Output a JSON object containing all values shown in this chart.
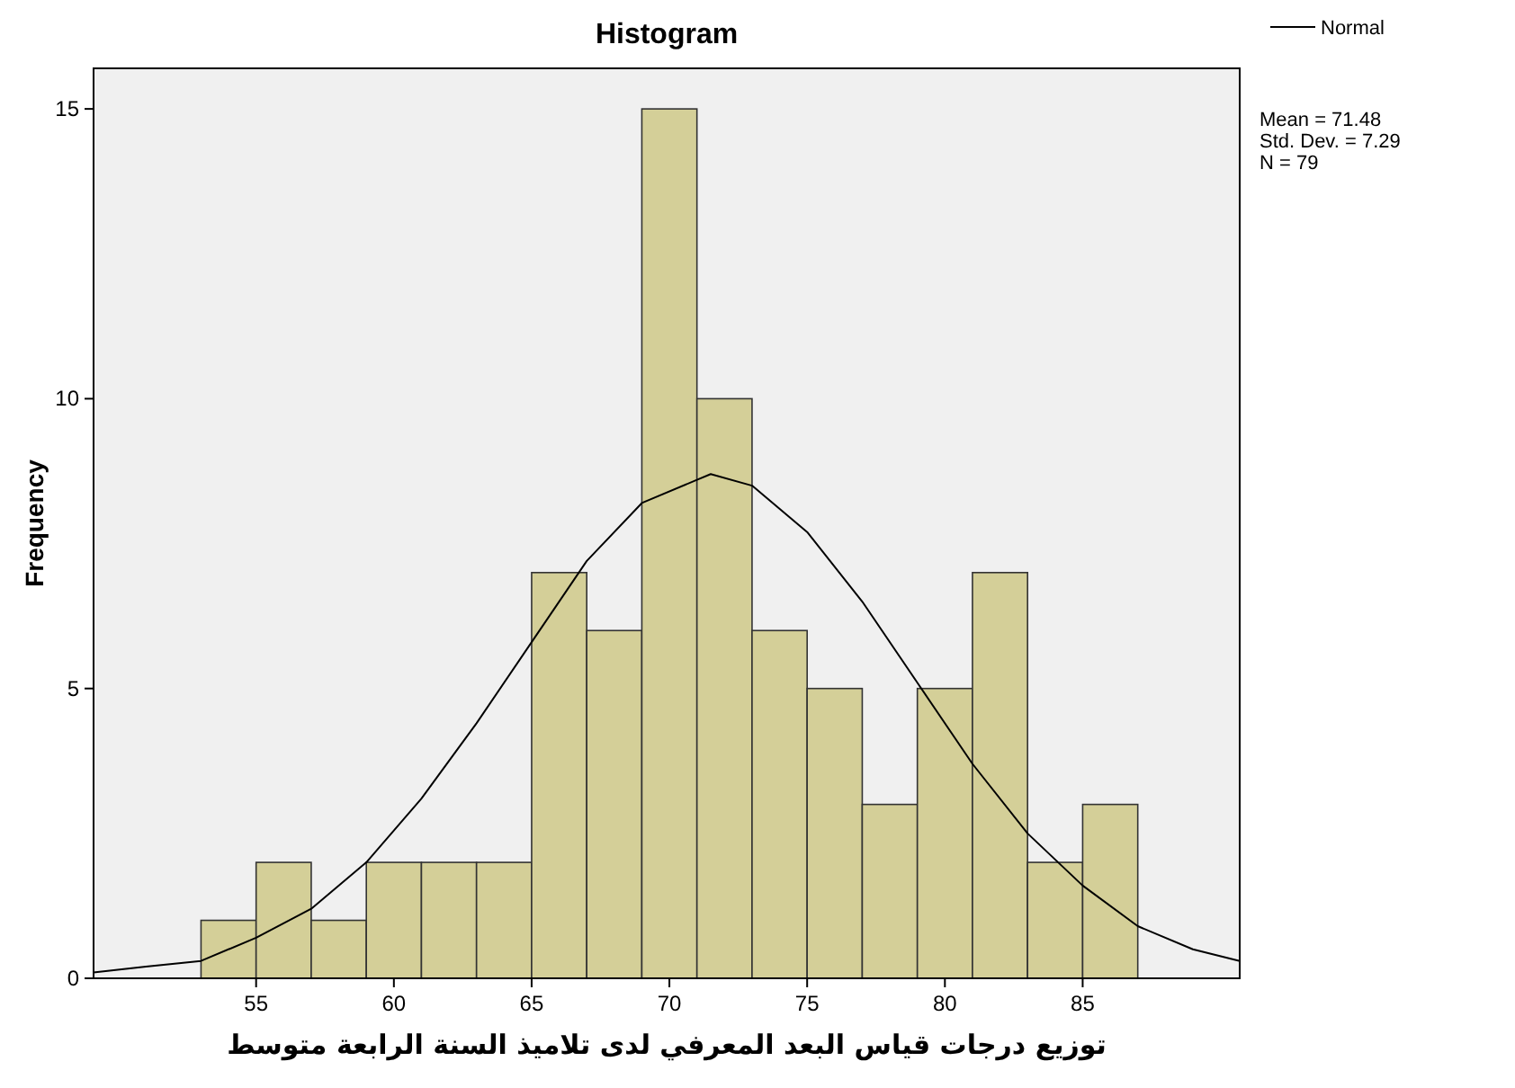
{
  "chart_data": {
    "type": "histogram",
    "title": "Histogram",
    "xlabel": "توزيع درجات قياس البعد المعرفي لدى تلاميذ السنة الرابعة متوسط",
    "ylabel": "Frequency",
    "series": [
      {
        "color": "#d4cf98",
        "bins": [
          53,
          55,
          57,
          59,
          61,
          63,
          65,
          67,
          69,
          71,
          73,
          75,
          77,
          79,
          81,
          83,
          85,
          87
        ],
        "values": [
          1,
          2,
          1,
          2,
          2,
          2,
          7,
          6,
          15,
          10,
          6,
          5,
          3,
          5,
          7,
          2,
          3
        ]
      },
      {
        "type": "line",
        "name": "Normal",
        "color": "#000000",
        "x": [
          49.1,
          51,
          53,
          55,
          57,
          59,
          61,
          63,
          65,
          67,
          69,
          71,
          71.5,
          73,
          75,
          77,
          79,
          81,
          83,
          85,
          87,
          89,
          90.7
        ],
        "values": [
          0.1,
          0.2,
          0.3,
          0.7,
          1.2,
          2.0,
          3.1,
          4.4,
          5.8,
          7.2,
          8.2,
          8.6,
          8.7,
          8.5,
          7.7,
          6.5,
          5.1,
          3.7,
          2.5,
          1.6,
          0.9,
          0.5,
          0.3
        ]
      }
    ],
    "annotations": [
      "Mean = 71.48",
      "Std. Dev. = 7.29",
      "N = 79"
    ],
    "xlim": [
      49.1,
      90.7
    ],
    "ylim": [
      0,
      15.7
    ],
    "xticks": [
      55,
      60,
      65,
      70,
      75,
      80,
      85
    ],
    "yticks": [
      0,
      5,
      10,
      15
    ],
    "legend": "top right",
    "grid": false
  }
}
